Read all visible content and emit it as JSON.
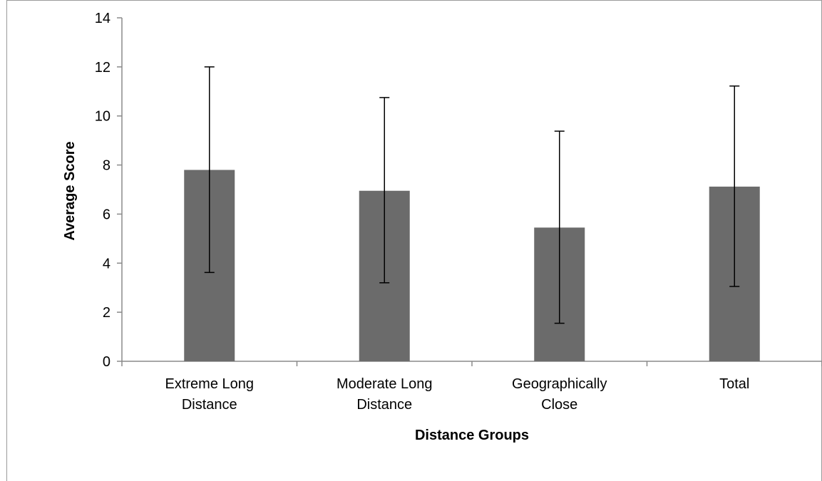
{
  "chart_data": {
    "type": "bar",
    "title": "",
    "xlabel": "Distance Groups",
    "ylabel": "Average Score",
    "ylim": [
      0,
      14
    ],
    "yticks": [
      0,
      2,
      4,
      6,
      8,
      10,
      12,
      14
    ],
    "grid": false,
    "legend": "none",
    "categories": [
      [
        "Extreme Long",
        "Distance"
      ],
      [
        "Moderate Long",
        "Distance"
      ],
      [
        "Geographically",
        "Close"
      ],
      [
        "Total"
      ]
    ],
    "series": [
      {
        "values": [
          7.8,
          6.95,
          5.45,
          7.12
        ],
        "error_low": [
          3.62,
          3.2,
          1.55,
          3.05
        ],
        "error_high": [
          12.0,
          10.75,
          9.38,
          11.22
        ],
        "color": "#6b6b6b"
      }
    ],
    "colors": {
      "bar": "#6b6b6b",
      "axis": "#8a8a8a",
      "frame": "#9a9a9a",
      "error": "#000000"
    }
  }
}
